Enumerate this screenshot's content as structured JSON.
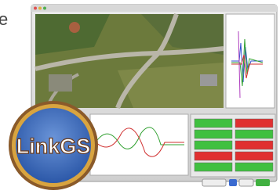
{
  "fragment": "e",
  "logo": {
    "text": "LinkGS"
  }
}
